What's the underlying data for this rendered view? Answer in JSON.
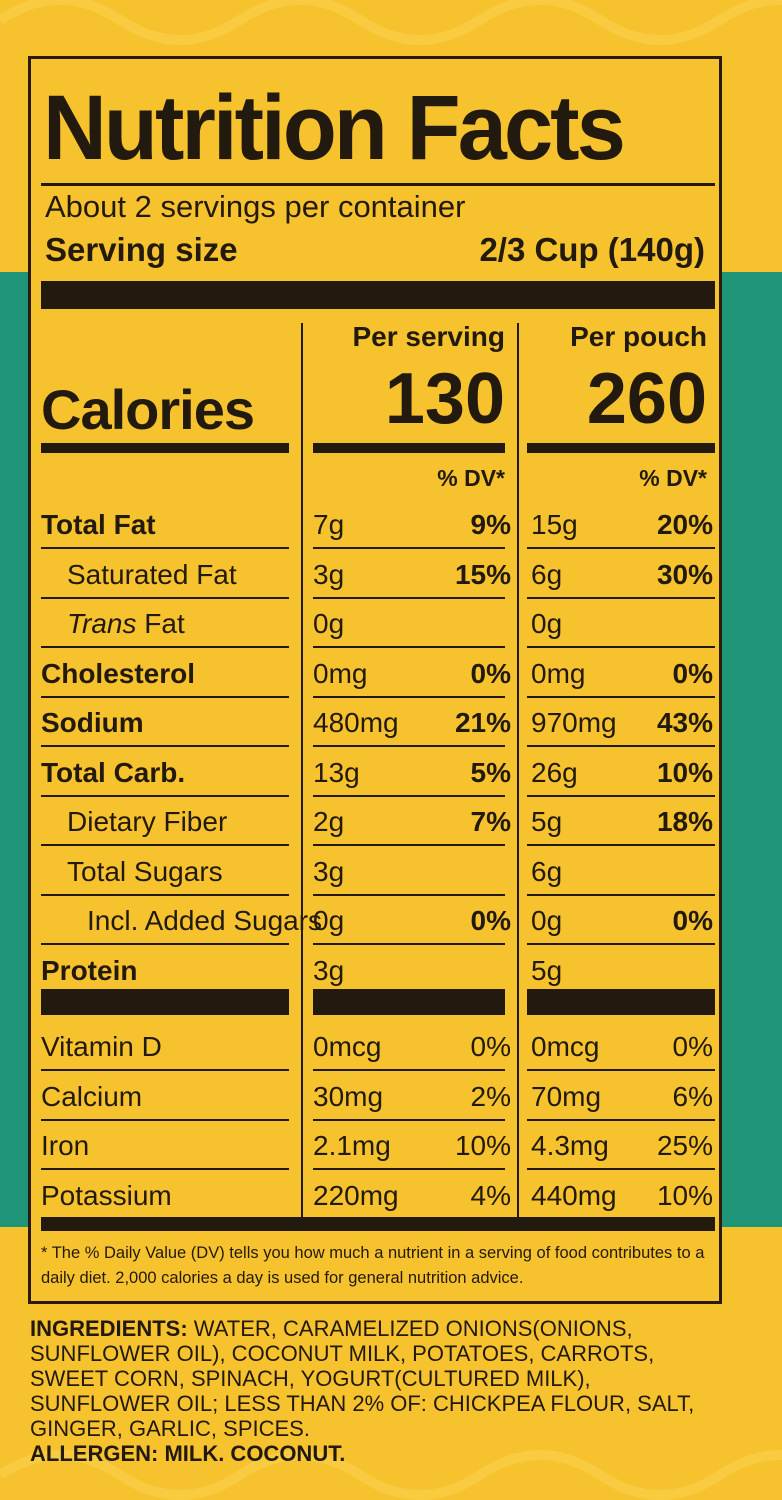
{
  "label": {
    "title": "Nutrition Facts",
    "servings_per_container": "About 2 servings per container",
    "serving_size_label": "Serving size",
    "serving_size_value": "2/3 Cup (140g)",
    "calories_label": "Calories",
    "columns": [
      {
        "heading": "Per serving",
        "calories": "130",
        "dv_heading": "% DV*"
      },
      {
        "heading": "Per pouch",
        "calories": "260",
        "dv_heading": "% DV*"
      }
    ],
    "nutrients": [
      {
        "name": "Total Fat",
        "style": "bold",
        "s_amt": "7g",
        "s_dv": "9%",
        "p_amt": "15g",
        "p_dv": "20%"
      },
      {
        "name": "Saturated Fat",
        "style": "indent",
        "s_amt": "3g",
        "s_dv": "15%",
        "p_amt": "6g",
        "p_dv": "30%"
      },
      {
        "name_italic": "Trans",
        "name": " Fat",
        "style": "indent",
        "s_amt": "0g",
        "s_dv": "",
        "p_amt": "0g",
        "p_dv": ""
      },
      {
        "name": "Cholesterol",
        "style": "bold",
        "s_amt": "0mg",
        "s_dv": "0%",
        "p_amt": "0mg",
        "p_dv": "0%"
      },
      {
        "name": "Sodium",
        "style": "bold",
        "s_amt": "480mg",
        "s_dv": "21%",
        "p_amt": "970mg",
        "p_dv": "43%"
      },
      {
        "name": "Total Carb.",
        "style": "bold",
        "s_amt": "13g",
        "s_dv": "5%",
        "p_amt": "26g",
        "p_dv": "10%"
      },
      {
        "name": "Dietary Fiber",
        "style": "indent",
        "s_amt": "2g",
        "s_dv": "7%",
        "p_amt": "5g",
        "p_dv": "18%"
      },
      {
        "name": "Total Sugars",
        "style": "indent",
        "s_amt": "3g",
        "s_dv": "",
        "p_amt": "6g",
        "p_dv": ""
      },
      {
        "name": "Incl. Added Sugars",
        "style": "indent2",
        "s_amt": "0g",
        "s_dv": "0%",
        "p_amt": "0g",
        "p_dv": "0%"
      },
      {
        "name": "Protein",
        "style": "bold",
        "s_amt": "3g",
        "s_dv": "",
        "p_amt": "5g",
        "p_dv": ""
      }
    ],
    "vitamins": [
      {
        "name": "Vitamin D",
        "s_amt": "0mcg",
        "s_dv": "0%",
        "p_amt": "0mcg",
        "p_dv": "0%"
      },
      {
        "name": "Calcium",
        "s_amt": "30mg",
        "s_dv": "2%",
        "p_amt": "70mg",
        "p_dv": "6%"
      },
      {
        "name": "Iron",
        "s_amt": "2.1mg",
        "s_dv": "10%",
        "p_amt": "4.3mg",
        "p_dv": "25%"
      },
      {
        "name": "Potassium",
        "s_amt": "220mg",
        "s_dv": "4%",
        "p_amt": "440mg",
        "p_dv": "10%"
      }
    ],
    "footnote": "* The % Daily Value (DV) tells you how much a nutrient in a serving of food contributes to a daily diet. 2,000 calories a day is used for general nutrition advice."
  },
  "ingredients": {
    "label": "INGREDIENTS:",
    "text": " WATER, CARAMELIZED ONIONS(ONIONS, SUNFLOWER OIL), COCONUT MILK, POTATOES, CARROTS, SWEET CORN, SPINACH, YOGURT(CULTURED MILK), SUNFLOWER OIL; LESS THAN 2% OF: CHICKPEA FLOUR, SALT, GINGER, GARLIC, SPICES.",
    "allergen": "ALLERGEN: MILK. COCONUT."
  },
  "colors": {
    "background": "#f6c22d",
    "teal": "#1f9577",
    "ink": "#231a0f"
  }
}
